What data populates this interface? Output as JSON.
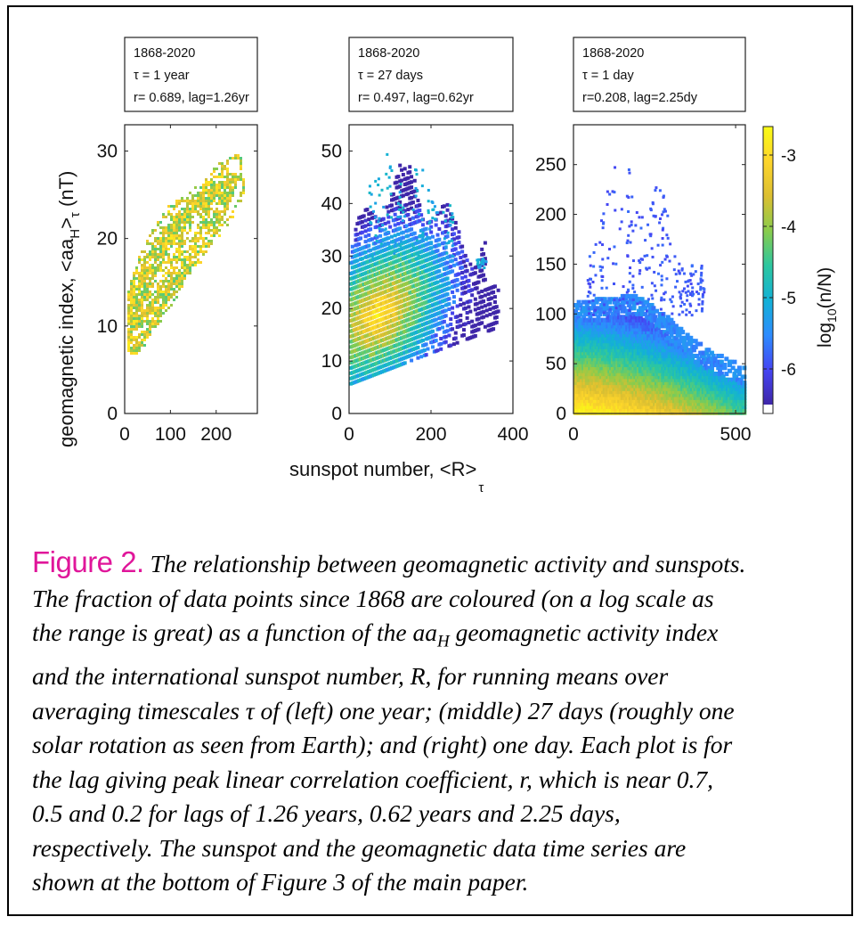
{
  "figure": {
    "xlabel": "sunspot number, <R>",
    "xlabel_sub": "τ",
    "ylabel": "geomagnetic index, <aa",
    "ylabel_sub1": "H",
    "ylabel_mid": ">",
    "ylabel_sub2": "τ",
    "ylabel_unit": " (nT)",
    "colorbar_label": "log",
    "colorbar_label_sub": "10",
    "colorbar_label_tail": "(n/N)",
    "colorbar_ticks": [
      "-3",
      "-4",
      "-5",
      "-6"
    ],
    "colorbar_range": [
      -6.5,
      -2.6
    ],
    "colormap": [
      "#3e26a8",
      "#4545f3",
      "#2d8cfe",
      "#12b1d6",
      "#2cc7a0",
      "#89cc4c",
      "#dcbf31",
      "#fdd52b",
      "#f9fb15"
    ]
  },
  "chart_data": [
    {
      "type": "heatmap",
      "info": [
        "1868-2020",
        "τ = 1 year",
        "r= 0.689, lag=1.26yr"
      ],
      "xlim": [
        0,
        290
      ],
      "ylim": [
        0,
        33
      ],
      "xticks": [
        0,
        100,
        200
      ],
      "yticks": [
        0,
        10,
        20,
        30
      ],
      "xtick_labels": [
        "0",
        "100",
        "200"
      ],
      "ytick_labels": [
        "0",
        "10",
        "20",
        "30"
      ]
    },
    {
      "type": "heatmap",
      "info": [
        "1868-2020",
        "τ = 27 days",
        "r= 0.497, lag=0.62yr"
      ],
      "xlim": [
        0,
        400
      ],
      "ylim": [
        0,
        55
      ],
      "xticks": [
        0,
        200,
        400
      ],
      "yticks": [
        0,
        10,
        20,
        30,
        40,
        50
      ],
      "xtick_labels": [
        "0",
        "200",
        "400"
      ],
      "ytick_labels": [
        "0",
        "10",
        "20",
        "30",
        "40",
        "50"
      ]
    },
    {
      "type": "heatmap",
      "info": [
        "1868-2020",
        "τ = 1 day",
        "r=0.208, lag=2.25dy"
      ],
      "xlim": [
        0,
        530
      ],
      "ylim": [
        0,
        290
      ],
      "xticks": [
        0,
        500
      ],
      "yticks": [
        0,
        50,
        100,
        150,
        200,
        250
      ],
      "xtick_labels": [
        "0",
        "500"
      ],
      "ytick_labels": [
        "0",
        "50",
        "100",
        "150",
        "200",
        "250"
      ]
    }
  ],
  "caption": {
    "label": "Figure 2.",
    "lines": [
      " The relationship between geomagnetic activity and sunspots.",
      "The fraction of data points since 1868 are coloured (on a log scale as",
      "the range is great) as a function of the aa",
      "H",
      " geomagnetic activity index",
      "and the international sunspot number, R, for running means over",
      "averaging timescales τ of (left) one year; (middle) 27 days (roughly one",
      "solar rotation as seen from Earth); and (right) one day. Each plot is for",
      "the lag giving peak linear correlation coefficient, r, which is near 0.7,",
      "0.5 and 0.2 for lags of 1.26 years, 0.62 years and 2.25 days,",
      "respectively. The sunspot and the geomagnetic data time series are",
      "shown at the bottom of Figure 3 of the main paper."
    ]
  }
}
